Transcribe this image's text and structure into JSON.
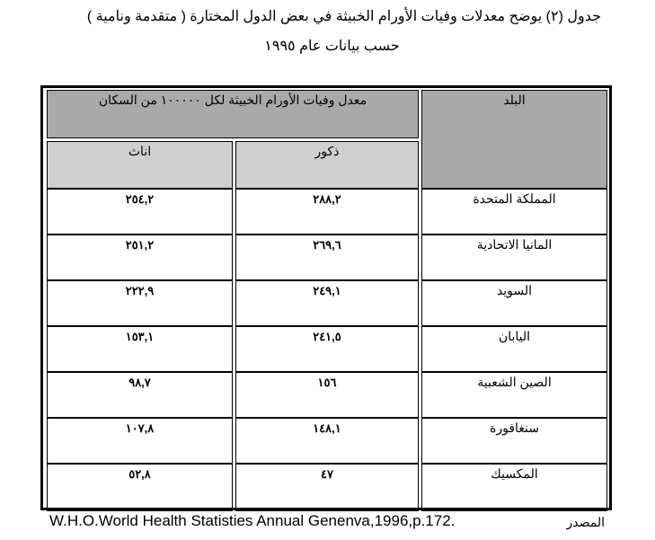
{
  "title": "جدول (٢) يوضح معدلات وفيات الأورام الخبيثة في بعض الدول  المختارة ( متقدمة ونامية )",
  "subtitle": "حسب بيانات عام ١٩٩٥",
  "table": {
    "headers": {
      "country": "البلد",
      "rate_group": "معدل وفيات الأورام الخبيثة لكل ١٠٠٠٠٠ من السكان",
      "males": "ذكور",
      "females": "اناث"
    },
    "rows": [
      {
        "country": "المملكة المتحدة",
        "males": "٢٨٨,٢",
        "females": "٢٥٤,٢"
      },
      {
        "country": "المانيا الاتحادية",
        "males": "٢٦٩,٦",
        "females": "٢٥١,٢"
      },
      {
        "country": "السويد",
        "males": "٢٤٩,١",
        "females": "٢٢٢,٩"
      },
      {
        "country": "اليابان",
        "males": "٢٤١,٥",
        "females": "١٥٣,١"
      },
      {
        "country": "الصين الشعبية",
        "males": "١٥٦",
        "females": "٩٨,٧"
      },
      {
        "country": "سنغافورة",
        "males": "١٤٨,١",
        "females": "١٠٧,٨"
      },
      {
        "country": "المكسيك",
        "males": "٤٧",
        "females": "٥٢,٨"
      }
    ]
  },
  "footer": {
    "source_label": "المصدر",
    "citation": "W.H.O.World Health Statisties Annual Genenva,1996,p.172."
  }
}
